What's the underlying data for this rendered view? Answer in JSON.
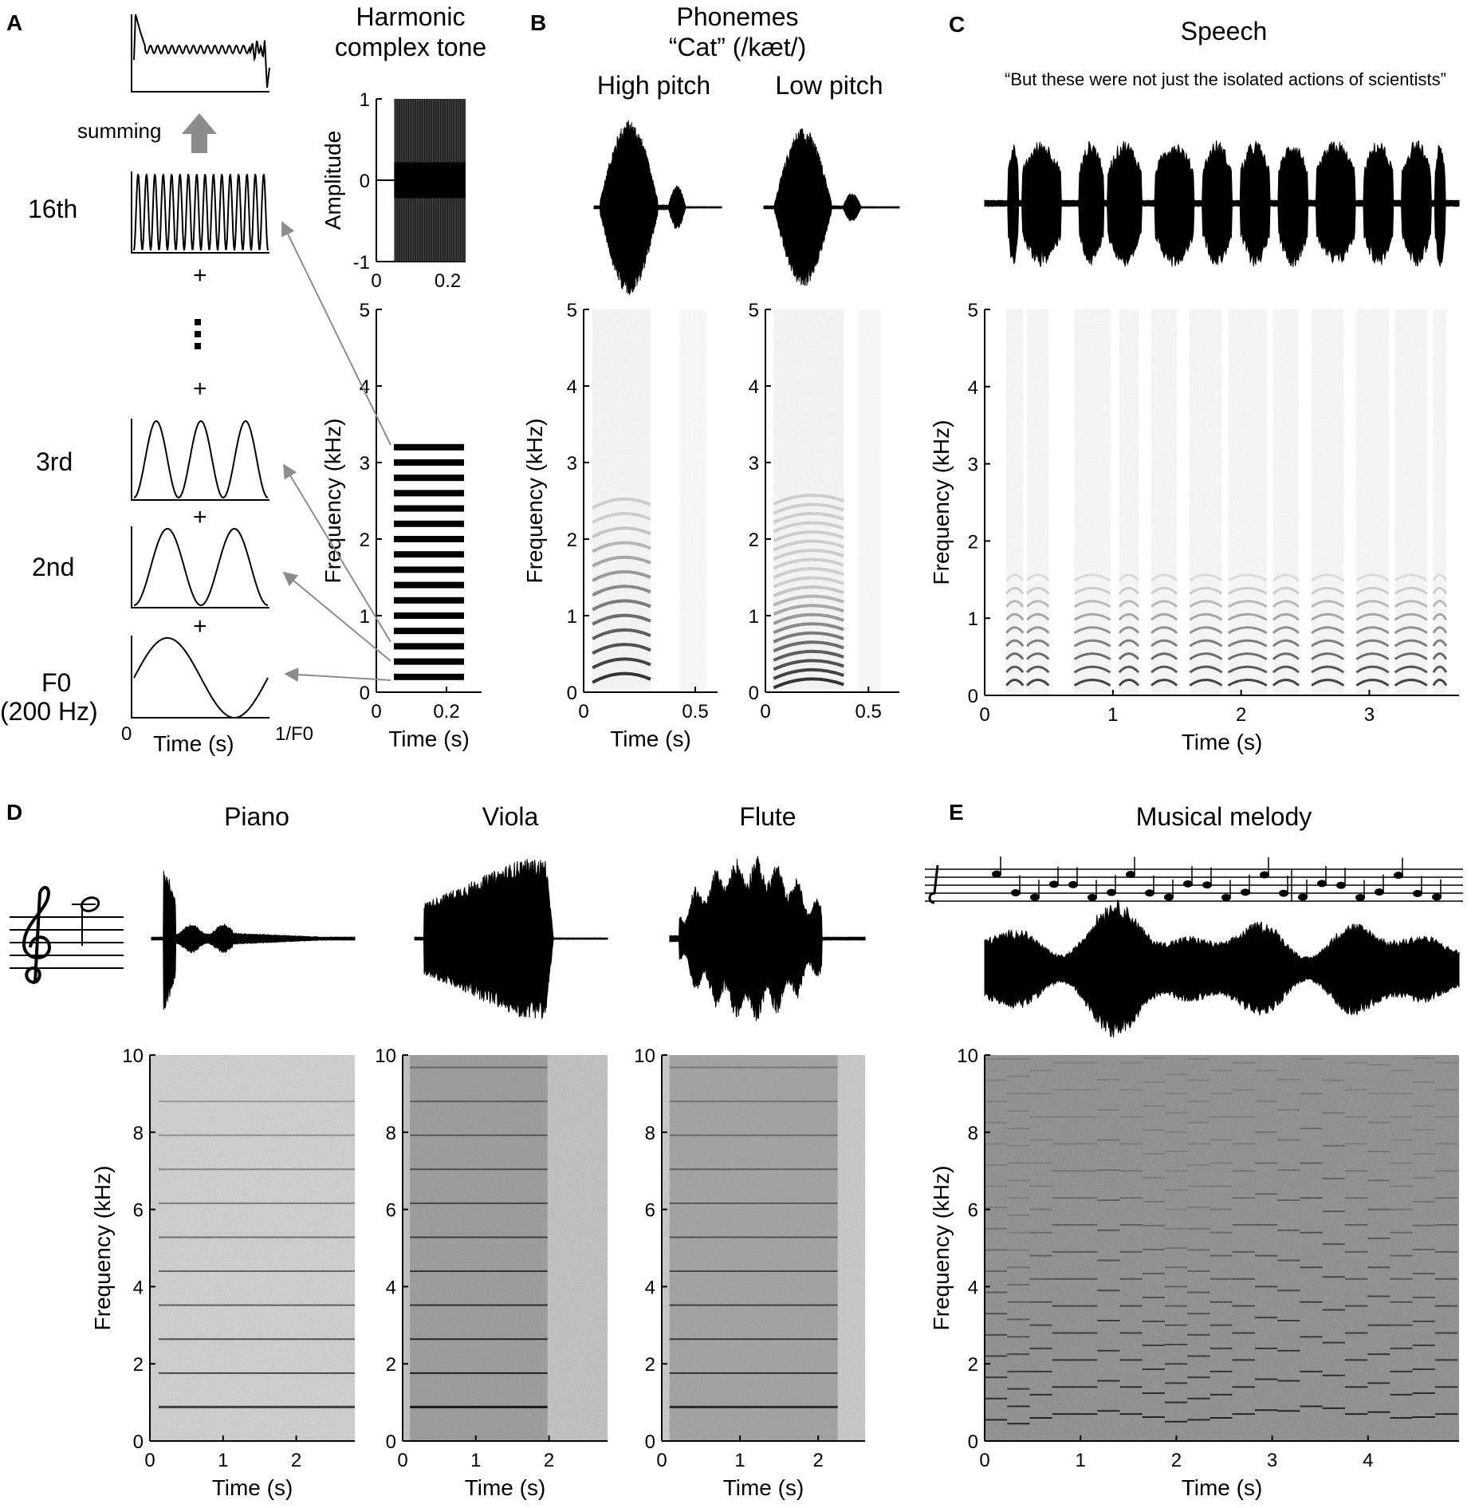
{
  "figure": {
    "panels": [
      {
        "letter": "A"
      },
      {
        "letter": "B"
      },
      {
        "letter": "C"
      },
      {
        "letter": "D"
      },
      {
        "letter": "E"
      }
    ]
  },
  "panel_a": {
    "summing_label": "summing",
    "harmonic_labels": [
      "16th",
      "3rd",
      "2nd",
      "F0",
      "(200 Hz)"
    ],
    "plus": "+",
    "time_axis_left": "0",
    "time_axis_label": "Time (s)",
    "time_axis_right": "1/F0",
    "tone_title_line1": "Harmonic",
    "tone_title_line2": "complex tone"
  },
  "panel_b": {
    "title_line1": "Phonemes",
    "title_line2": "“Cat” (/kæt/)",
    "sub_high": "High pitch",
    "sub_low": "Low pitch"
  },
  "panel_c": {
    "title": "Speech",
    "quote": "“But these were not just the isolated actions of scientists”"
  },
  "panel_d": {
    "titles": [
      "Piano",
      "Viola",
      "Flute"
    ]
  },
  "panel_e": {
    "title": "Musical melody"
  },
  "chart_data": [
    {
      "id": "A-amplitude",
      "type": "line",
      "title": "",
      "xlabel": "",
      "ylabel": "Amplitude",
      "xlim": [
        0,
        0.25
      ],
      "ylim": [
        -1,
        1
      ],
      "xticks": [
        "0",
        "0.2"
      ],
      "yticks": [
        "-1",
        "0",
        "1"
      ],
      "x": [
        0.05,
        0.25
      ]
    },
    {
      "id": "A-harmonics",
      "type": "bar",
      "title": "",
      "xlabel": "Time (s)",
      "ylabel": "Frequency (kHz)",
      "xlim": [
        0,
        0.3
      ],
      "ylim": [
        0,
        5
      ],
      "xticks": [
        "0",
        "0.2"
      ],
      "yticks": [
        "0",
        "1",
        "2",
        "3",
        "4",
        "5"
      ],
      "harmonic_frequencies_khz": [
        0.2,
        0.4,
        0.6,
        0.8,
        1.0,
        1.2,
        1.4,
        1.6,
        1.8,
        2.0,
        2.2,
        2.4,
        2.6,
        2.8,
        3.0,
        3.2
      ],
      "x_start": 0.05,
      "x_end": 0.25
    },
    {
      "id": "B-high",
      "type": "heatmap",
      "xlabel": "Time (s)",
      "ylabel": "Frequency (kHz)",
      "xlim": [
        0,
        0.6
      ],
      "ylim": [
        0,
        5
      ],
      "xticks": [
        "0",
        "0.5"
      ],
      "yticks": [
        "0",
        "1",
        "2",
        "3",
        "4",
        "5"
      ],
      "segments_s": [
        [
          0.04,
          0.3
        ],
        [
          0.43,
          0.55
        ]
      ],
      "f0_khz": 0.19
    },
    {
      "id": "B-low",
      "type": "heatmap",
      "xlabel": "",
      "ylabel": "",
      "xlim": [
        0,
        0.65
      ],
      "ylim": [
        0,
        5
      ],
      "xticks": [
        "0",
        "0.5"
      ],
      "yticks": [
        "0",
        "1",
        "2",
        "3",
        "4",
        "5"
      ],
      "segments_s": [
        [
          0.04,
          0.38
        ],
        [
          0.45,
          0.56
        ]
      ],
      "f0_khz": 0.12
    },
    {
      "id": "C-speech",
      "type": "heatmap",
      "xlabel": "Time (s)",
      "ylabel": "Frequency (kHz)",
      "xlim": [
        0,
        3.7
      ],
      "ylim": [
        0,
        5
      ],
      "xticks": [
        "0",
        "1",
        "2",
        "3"
      ],
      "yticks": [
        "0",
        "1",
        "2",
        "3",
        "4",
        "5"
      ]
    },
    {
      "id": "D-piano",
      "type": "heatmap",
      "xlabel": "Time (s)",
      "ylabel": "Frequency (kHz)",
      "xlim": [
        0,
        2.8
      ],
      "ylim": [
        0,
        10
      ],
      "xticks": [
        "0",
        "1",
        "2"
      ],
      "yticks": [
        "0",
        "2",
        "4",
        "6",
        "8",
        "10"
      ],
      "note_span_s": [
        0.12,
        2.8
      ],
      "harmonics_khz": [
        0.88,
        1.76,
        2.64,
        3.52,
        4.4,
        5.28,
        6.16,
        7.04,
        7.92,
        8.8
      ]
    },
    {
      "id": "D-viola",
      "type": "heatmap",
      "xlabel": "Time (s)",
      "ylabel": "",
      "xlim": [
        0,
        2.8
      ],
      "ylim": [
        0,
        10
      ],
      "xticks": [
        "0",
        "1",
        "2"
      ],
      "yticks": [
        "0",
        "2",
        "4",
        "6",
        "8",
        "10"
      ],
      "note_span_s": [
        0.1,
        1.98
      ],
      "harmonics_khz": [
        0.88,
        1.76,
        2.64,
        3.52,
        4.4,
        5.28,
        6.16,
        7.04,
        7.92,
        8.8,
        9.68
      ]
    },
    {
      "id": "D-flute",
      "type": "heatmap",
      "xlabel": "Time (s)",
      "ylabel": "",
      "xlim": [
        0,
        2.6
      ],
      "ylim": [
        0,
        10
      ],
      "xticks": [
        "0",
        "1",
        "2"
      ],
      "yticks": [
        "0",
        "2",
        "4",
        "6",
        "8",
        "10"
      ],
      "note_span_s": [
        0.1,
        2.25
      ],
      "harmonics_khz": [
        0.88,
        1.76,
        2.64,
        3.52,
        4.4,
        5.28,
        6.16,
        7.04,
        7.92,
        8.8,
        9.68
      ]
    },
    {
      "id": "E-melody",
      "type": "heatmap",
      "xlabel": "Time (s)",
      "ylabel": "Frequency (kHz)",
      "xlim": [
        0,
        4.95
      ],
      "ylim": [
        0,
        10
      ],
      "xticks": [
        "0",
        "1",
        "2",
        "3",
        "4"
      ],
      "yticks": [
        "0",
        "2",
        "4",
        "6",
        "8",
        "10"
      ]
    }
  ]
}
